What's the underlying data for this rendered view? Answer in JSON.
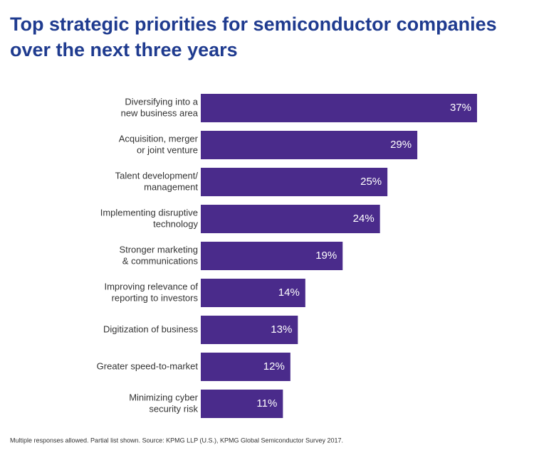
{
  "chart_data": {
    "type": "bar",
    "orientation": "horizontal",
    "title": [
      "Top strategic priorities for semiconductor companies",
      "over the next three years"
    ],
    "categories": [
      [
        "Diversifying into a",
        "new business area"
      ],
      [
        "Acquisition, merger",
        "or joint venture"
      ],
      [
        "Talent development/",
        "management"
      ],
      [
        "Implementing disruptive",
        "technology"
      ],
      [
        "Stronger marketing",
        "& communications"
      ],
      [
        "Improving relevance of",
        "reporting to investors"
      ],
      [
        "Digitization of business"
      ],
      [
        "Greater speed-to-market"
      ],
      [
        "Minimizing cyber",
        "security risk"
      ]
    ],
    "values": [
      37,
      29,
      25,
      24,
      19,
      14,
      13,
      12,
      11
    ],
    "value_labels": [
      "37%",
      "29%",
      "25%",
      "24%",
      "19%",
      "14%",
      "13%",
      "12%",
      "11%"
    ],
    "color": "#4a2b8b",
    "footnote": "Multiple responses allowed.  Partial list shown.   Source: KPMG LLP (U.S.), KPMG Global Semiconductor Survey 2017."
  }
}
